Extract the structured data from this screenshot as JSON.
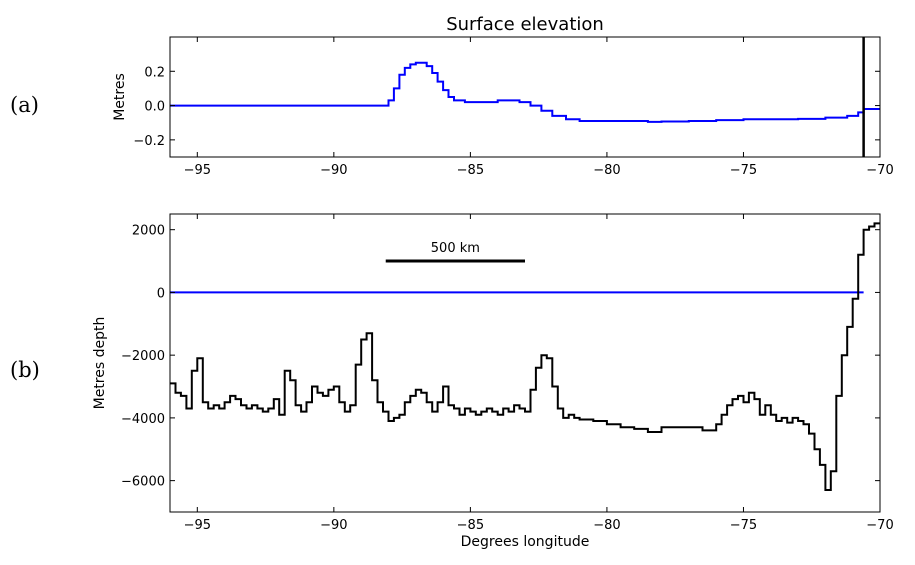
{
  "chart_data": [
    {
      "type": "line",
      "panel_label": "(a)",
      "title": "Surface elevation",
      "xlabel": "",
      "ylabel": "Metres",
      "xlim": [
        -96,
        -70
      ],
      "ylim": [
        -0.3,
        0.4
      ],
      "xticks": [
        -95,
        -90,
        -85,
        -80,
        -75,
        -70
      ],
      "xtick_labels": [
        "−95",
        "−90",
        "−85",
        "−80",
        "−75",
        "−70"
      ],
      "yticks": [
        -0.2,
        0.0,
        0.2
      ],
      "ytick_labels": [
        "−0.2",
        "0.0",
        "0.2"
      ],
      "grid": false,
      "series": [
        {
          "color": "#0000ff",
          "step": true,
          "x": [
            -96,
            -88.2,
            -88.0,
            -87.8,
            -87.6,
            -87.4,
            -87.2,
            -87.0,
            -86.8,
            -86.6,
            -86.4,
            -86.2,
            -86.0,
            -85.8,
            -85.6,
            -85.2,
            -84.8,
            -84.4,
            -84.0,
            -83.6,
            -83.2,
            -82.8,
            -82.4,
            -82.0,
            -81.5,
            -81.0,
            -80.0,
            -79.0,
            -78.5,
            -78.0,
            -77.0,
            -76.0,
            -75.0,
            -74.0,
            -73.0,
            -72.0,
            -71.2,
            -70.8,
            -70.6
          ],
          "y": [
            0.0,
            0.0,
            0.03,
            0.1,
            0.18,
            0.22,
            0.24,
            0.25,
            0.25,
            0.23,
            0.19,
            0.14,
            0.09,
            0.05,
            0.03,
            0.02,
            0.02,
            0.02,
            0.03,
            0.03,
            0.02,
            0.0,
            -0.03,
            -0.06,
            -0.08,
            -0.09,
            -0.09,
            -0.09,
            -0.095,
            -0.093,
            -0.09,
            -0.085,
            -0.08,
            -0.08,
            -0.078,
            -0.07,
            -0.06,
            -0.04,
            -0.02
          ]
        }
      ],
      "vline_x": -70.6,
      "vline_color": "#000000"
    },
    {
      "type": "line",
      "panel_label": "(b)",
      "title": "",
      "xlabel": "Degrees longitude",
      "ylabel": "Metres depth",
      "xlim": [
        -96,
        -70
      ],
      "ylim": [
        -7000,
        2500
      ],
      "xticks": [
        -95,
        -90,
        -85,
        -80,
        -75,
        -70
      ],
      "xtick_labels": [
        "−95",
        "−90",
        "−85",
        "−80",
        "−75",
        "−70"
      ],
      "yticks": [
        -6000,
        -4000,
        -2000,
        0,
        2000
      ],
      "ytick_labels": [
        "−6000",
        "−4000",
        "−2000",
        "0",
        "2000"
      ],
      "grid": false,
      "scalebar": {
        "label": "500 km",
        "x": [
          -88.1,
          -83.0
        ],
        "y": 1000
      },
      "series": [
        {
          "color": "#0000ff",
          "step": false,
          "x": [
            -96,
            -70.6
          ],
          "y": [
            0,
            0
          ]
        },
        {
          "color": "#000000",
          "step": true,
          "x": [
            -96.0,
            -95.8,
            -95.6,
            -95.4,
            -95.2,
            -95.0,
            -94.8,
            -94.6,
            -94.4,
            -94.2,
            -94.0,
            -93.8,
            -93.6,
            -93.4,
            -93.2,
            -93.0,
            -92.8,
            -92.6,
            -92.4,
            -92.2,
            -92.0,
            -91.8,
            -91.6,
            -91.4,
            -91.2,
            -91.0,
            -90.8,
            -90.6,
            -90.4,
            -90.2,
            -90.0,
            -89.8,
            -89.6,
            -89.4,
            -89.2,
            -89.0,
            -88.8,
            -88.6,
            -88.4,
            -88.2,
            -88.0,
            -87.8,
            -87.6,
            -87.4,
            -87.2,
            -87.0,
            -86.8,
            -86.6,
            -86.4,
            -86.2,
            -86.0,
            -85.8,
            -85.6,
            -85.4,
            -85.2,
            -85.0,
            -84.8,
            -84.6,
            -84.4,
            -84.2,
            -84.0,
            -83.8,
            -83.6,
            -83.4,
            -83.2,
            -83.0,
            -82.8,
            -82.6,
            -82.4,
            -82.2,
            -82.0,
            -81.8,
            -81.6,
            -81.4,
            -81.2,
            -81.0,
            -80.5,
            -80.0,
            -79.5,
            -79.0,
            -78.5,
            -78.0,
            -77.5,
            -77.0,
            -76.5,
            -76.0,
            -75.8,
            -75.6,
            -75.4,
            -75.2,
            -75.0,
            -74.8,
            -74.6,
            -74.4,
            -74.2,
            -74.0,
            -73.8,
            -73.6,
            -73.4,
            -73.2,
            -73.0,
            -72.8,
            -72.6,
            -72.4,
            -72.2,
            -72.0,
            -71.8,
            -71.6,
            -71.4,
            -71.2,
            -71.0,
            -70.8,
            -70.6,
            -70.4,
            -70.2
          ],
          "y": [
            -2900,
            -3200,
            -3300,
            -3700,
            -2500,
            -2100,
            -3500,
            -3700,
            -3600,
            -3700,
            -3500,
            -3300,
            -3400,
            -3600,
            -3700,
            -3600,
            -3700,
            -3800,
            -3700,
            -3400,
            -3900,
            -2500,
            -2800,
            -3600,
            -3800,
            -3500,
            -3000,
            -3200,
            -3300,
            -3100,
            -3000,
            -3500,
            -3800,
            -3600,
            -2300,
            -1500,
            -1300,
            -2800,
            -3500,
            -3800,
            -4100,
            -4000,
            -3900,
            -3500,
            -3300,
            -3100,
            -3200,
            -3500,
            -3800,
            -3500,
            -3000,
            -3600,
            -3700,
            -3900,
            -3700,
            -3800,
            -3900,
            -3800,
            -3700,
            -3800,
            -3900,
            -3700,
            -3800,
            -3600,
            -3700,
            -3800,
            -3100,
            -2400,
            -2000,
            -2100,
            -3000,
            -3700,
            -4000,
            -3900,
            -4000,
            -4050,
            -4100,
            -4200,
            -4300,
            -4350,
            -4450,
            -4300,
            -4300,
            -4300,
            -4400,
            -4200,
            -3900,
            -3600,
            -3400,
            -3300,
            -3500,
            -3200,
            -3400,
            -3900,
            -3600,
            -3900,
            -4100,
            -4000,
            -4150,
            -4000,
            -4100,
            -4200,
            -4500,
            -5000,
            -5500,
            -6300,
            -5700,
            -3300,
            -2000,
            -1100,
            -200,
            1200,
            2000,
            2100,
            2200
          ]
        }
      ]
    }
  ]
}
